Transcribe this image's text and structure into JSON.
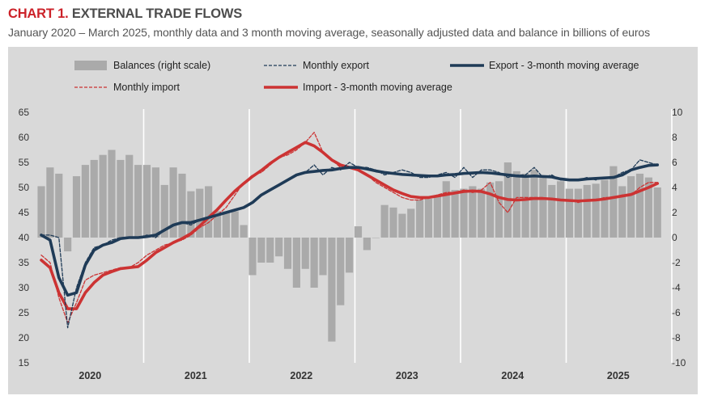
{
  "header": {
    "chart_label": "CHART 1.",
    "title": "EXTERNAL TRADE FLOWS",
    "subtitle": "January 2020 – March 2025, monthly data and 3 month moving average, seasonally adjusted data and balance in billions of euros"
  },
  "colors": {
    "panel_bg": "#d9d9d9",
    "bars": "#aaaaaa",
    "export": "#1f3b57",
    "import": "#cc3333",
    "title_accent": "#cc2229"
  },
  "chart_data": {
    "type": "bar+line",
    "title": "EXTERNAL TRADE FLOWS",
    "x_axis": {
      "labels": [
        "2020",
        "2021",
        "2022",
        "2023",
        "2024",
        "2025"
      ]
    },
    "y_left": {
      "min": 15,
      "max": 65,
      "ticks": [
        15,
        20,
        25,
        30,
        35,
        40,
        45,
        50,
        55,
        60,
        65
      ]
    },
    "y_right": {
      "min": -10,
      "max": 10,
      "ticks": [
        -10,
        -8,
        -6,
        -4,
        -2,
        0,
        2,
        4,
        6,
        8,
        10
      ]
    },
    "legend": [
      {
        "key": "balances",
        "label": "Balances (right scale)",
        "style": "bar"
      },
      {
        "key": "monthly_export",
        "label": "Monthly export",
        "style": "dashed"
      },
      {
        "key": "export_ma",
        "label": "Export - 3-month moving average",
        "style": "thick"
      },
      {
        "key": "monthly_import",
        "label": "Monthly import",
        "style": "dashed"
      },
      {
        "key": "import_ma",
        "label": "Import - 3-month moving average",
        "style": "thick"
      }
    ],
    "balances": [
      4.1,
      5.6,
      5.1,
      -1.1,
      4.9,
      5.8,
      6.2,
      6.6,
      7.0,
      6.2,
      6.6,
      5.8,
      5.8,
      5.6,
      4.2,
      5.6,
      5.1,
      3.7,
      3.9,
      4.1,
      2.1,
      2.1,
      2.1,
      1.0,
      -3.0,
      -2.0,
      -2.0,
      -1.5,
      -2.5,
      -4.0,
      -2.5,
      -4.0,
      -3.0,
      -8.3,
      -5.4,
      -2.8,
      0.9,
      -1.0,
      0,
      2.6,
      2.4,
      1.9,
      2.3,
      3.0,
      3.1,
      3.3,
      4.5,
      3.8,
      3.9,
      4.1,
      3.9,
      4.4,
      4.5,
      6.0,
      5.3,
      5.1,
      5.4,
      4.8,
      4.2,
      4.5,
      3.9,
      3.9,
      4.2,
      4.3,
      4.6,
      5.7,
      4.1,
      4.9,
      5.1,
      4.8,
      4.0
    ],
    "monthly_export": [
      40.5,
      40.5,
      40.0,
      22.0,
      30.0,
      35.0,
      38.0,
      38.5,
      39.5,
      40.0,
      40.0,
      40.0,
      40.5,
      40.0,
      41.5,
      42.5,
      43.0,
      42.5,
      43.5,
      44.0,
      44.5,
      45.0,
      45.5,
      46.0,
      47.0,
      48.5,
      49.5,
      50.5,
      51.5,
      52.5,
      53.0,
      54.5,
      52.5,
      54.0,
      53.5,
      55.0,
      54.0,
      54.0,
      53.5,
      52.5,
      53.0,
      53.5,
      53.0,
      52.0,
      52.0,
      52.5,
      53.0,
      52.0,
      54.0,
      52.0,
      53.5,
      53.5,
      53.0,
      52.0,
      52.5,
      52.5,
      54.0,
      52.0,
      52.5,
      51.5,
      51.5,
      51.5,
      52.0,
      51.5,
      52.0,
      52.0,
      53.0,
      53.5,
      55.5,
      55.0,
      54.5
    ],
    "export_ma": [
      40.5,
      39.5,
      32.0,
      28.5,
      29.0,
      34.5,
      37.5,
      38.5,
      39.0,
      39.8,
      40.0,
      40.0,
      40.2,
      40.5,
      41.5,
      42.5,
      43.0,
      43.0,
      43.5,
      44.0,
      44.5,
      45.0,
      45.5,
      46.0,
      47.0,
      48.5,
      49.5,
      50.5,
      51.5,
      52.5,
      53.0,
      53.2,
      53.4,
      53.5,
      53.8,
      54.0,
      54.0,
      53.7,
      53.3,
      53.0,
      52.8,
      52.6,
      52.5,
      52.4,
      52.3,
      52.3,
      52.5,
      52.6,
      52.8,
      52.9,
      53.0,
      52.9,
      52.7,
      52.5,
      52.3,
      52.2,
      52.3,
      52.2,
      52.1,
      51.7,
      51.5,
      51.5,
      51.7,
      51.8,
      51.9,
      52.0,
      52.5,
      53.5,
      54.0,
      54.4,
      54.5
    ],
    "monthly_import": [
      36.5,
      35.0,
      28.0,
      23.0,
      27.0,
      31.5,
      32.5,
      33.0,
      33.5,
      34.0,
      34.0,
      35.0,
      36.5,
      37.5,
      38.5,
      39.0,
      39.5,
      40.5,
      42.0,
      43.0,
      44.5,
      46.0,
      48.5,
      51.0,
      52.5,
      53.0,
      54.5,
      56.0,
      56.5,
      57.5,
      59.0,
      61.0,
      57.0,
      55.5,
      54.0,
      54.0,
      53.5,
      52.5,
      51.0,
      50.0,
      49.0,
      48.0,
      47.5,
      47.5,
      48.0,
      48.5,
      49.0,
      49.0,
      49.5,
      49.0,
      49.5,
      51.0,
      47.0,
      45.0,
      48.0,
      48.0,
      48.0,
      48.0,
      47.5,
      47.5,
      47.5,
      47.0,
      47.5,
      47.5,
      48.0,
      48.0,
      48.5,
      48.5,
      50.0,
      51.0,
      51.0
    ],
    "import_ma": [
      35.5,
      34.0,
      29.0,
      25.8,
      25.8,
      29.0,
      31.0,
      32.5,
      33.2,
      33.8,
      34.0,
      34.2,
      35.5,
      37.0,
      38.0,
      39.0,
      39.8,
      40.8,
      42.3,
      44.0,
      45.6,
      47.5,
      49.3,
      50.8,
      52.2,
      53.4,
      54.8,
      56.0,
      57.0,
      58.0,
      59.0,
      58.3,
      57.0,
      55.5,
      54.5,
      54.0,
      53.5,
      52.5,
      51.5,
      50.5,
      49.5,
      48.8,
      48.2,
      48.0,
      48.0,
      48.3,
      48.6,
      48.9,
      49.2,
      49.3,
      49.2,
      48.7,
      48.0,
      47.6,
      47.5,
      47.6,
      47.8,
      47.8,
      47.7,
      47.5,
      47.4,
      47.3,
      47.4,
      47.5,
      47.7,
      48.0,
      48.3,
      48.6,
      49.3,
      50.0,
      50.8
    ]
  }
}
